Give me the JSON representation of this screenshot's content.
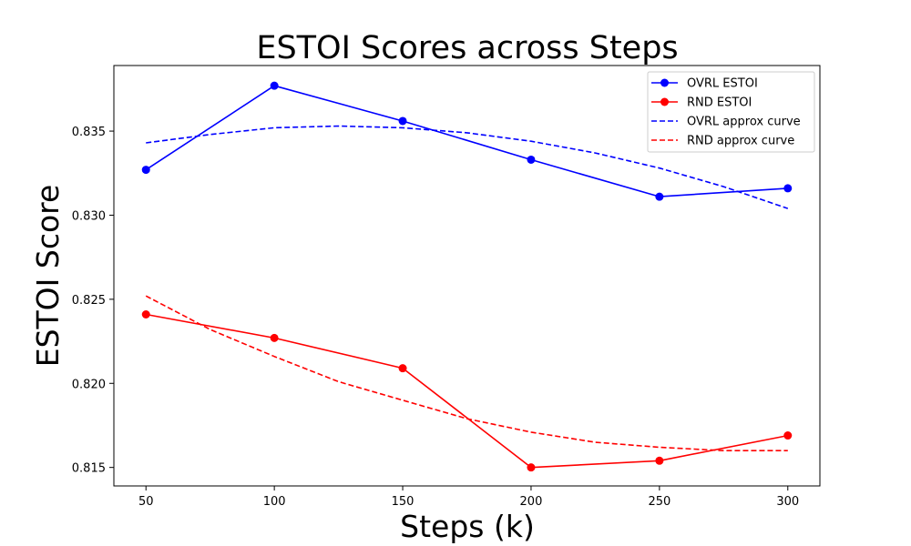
{
  "chart_data": {
    "type": "line",
    "title": "ESTOI Scores across Steps",
    "xlabel": "Steps (k)",
    "ylabel": "ESTOI Score",
    "x": [
      50,
      100,
      150,
      200,
      250,
      300
    ],
    "xticks": [
      50,
      100,
      150,
      200,
      250,
      300
    ],
    "yticks": [
      0.815,
      0.82,
      0.825,
      0.83,
      0.835
    ],
    "ytick_labels": [
      "0.815",
      "0.820",
      "0.825",
      "0.830",
      "0.835"
    ],
    "xlim": [
      37.5,
      312.5
    ],
    "ylim": [
      0.8139,
      0.8389
    ],
    "grid": false,
    "legend_position": "top-right",
    "series": [
      {
        "name": "OVRL ESTOI",
        "color": "#0000ff",
        "style": "solid",
        "marker": "circle",
        "x": [
          50,
          100,
          150,
          200,
          250,
          300
        ],
        "values": [
          0.8327,
          0.8377,
          0.8356,
          0.8333,
          0.8311,
          0.8316
        ]
      },
      {
        "name": "RND ESTOI",
        "color": "#ff0000",
        "style": "solid",
        "marker": "circle",
        "x": [
          50,
          100,
          150,
          200,
          250,
          300
        ],
        "values": [
          0.8241,
          0.8227,
          0.8209,
          0.815,
          0.8154,
          0.8169
        ]
      },
      {
        "name": "OVRL approx curve",
        "color": "#0000ff",
        "style": "dashed",
        "marker": "none",
        "x": [
          50,
          75,
          100,
          125,
          150,
          175,
          200,
          225,
          250,
          275,
          300
        ],
        "values": [
          0.8343,
          0.8348,
          0.8352,
          0.8353,
          0.8352,
          0.8349,
          0.8344,
          0.8337,
          0.8328,
          0.8317,
          0.8304
        ]
      },
      {
        "name": "RND approx curve",
        "color": "#ff0000",
        "style": "dashed",
        "marker": "none",
        "x": [
          50,
          75,
          100,
          125,
          150,
          175,
          200,
          225,
          250,
          275,
          300
        ],
        "values": [
          0.8252,
          0.8232,
          0.8216,
          0.8201,
          0.819,
          0.8179,
          0.8171,
          0.8165,
          0.8162,
          0.816,
          0.816
        ]
      }
    ]
  }
}
